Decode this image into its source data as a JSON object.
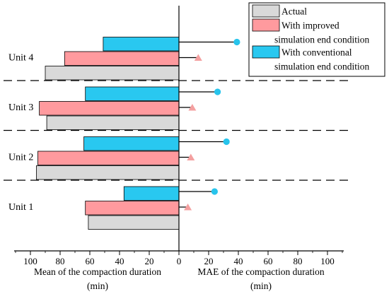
{
  "chart_data": {
    "type": "bar",
    "categories": [
      "Unit 1",
      "Unit 2",
      "Unit 3",
      "Unit 4"
    ],
    "left_panel": {
      "type": "bar",
      "orientation": "horizontal",
      "direction": "reversed",
      "xlabel": "Mean of the compaction duration",
      "unit": "(min)",
      "xlim": [
        0,
        110
      ],
      "ticks": [
        0,
        20,
        40,
        60,
        80,
        100
      ],
      "series": [
        {
          "name": "Actual",
          "values": [
            61,
            96,
            89,
            90
          ]
        },
        {
          "name": "With improved simulation end condition",
          "values": [
            63,
            95,
            94,
            77
          ]
        },
        {
          "name": "With conventional simulation end condition",
          "values": [
            37,
            64,
            63,
            51
          ]
        }
      ]
    },
    "right_panel": {
      "type": "lollipop",
      "xlabel": "MAE of the compaction duration",
      "unit": "(min)",
      "xlim": [
        0,
        110
      ],
      "ticks": [
        0,
        20,
        40,
        60,
        80,
        100
      ],
      "series": [
        {
          "name": "With improved simulation end condition",
          "marker": "triangle",
          "values": [
            6,
            8,
            9,
            13
          ]
        },
        {
          "name": "With conventional simulation end condition",
          "marker": "circle",
          "values": [
            24,
            32,
            26,
            39
          ]
        }
      ]
    },
    "legend": {
      "position": "top-right",
      "entries": [
        {
          "lines": [
            "Actual"
          ],
          "color": "#d9d9d9"
        },
        {
          "lines": [
            "With improved",
            "simulation end condition"
          ],
          "color": "#ff9a9e"
        },
        {
          "lines": [
            "With conventional",
            "simulation end condition"
          ],
          "color": "#29c8f0"
        }
      ]
    },
    "colors": {
      "actual": "#d9d9d9",
      "improved": "#ff9a9e",
      "conventional": "#29c8f0",
      "improved_marker": "#f4a0a0",
      "conventional_marker": "#27c4ec"
    },
    "grid": false
  }
}
